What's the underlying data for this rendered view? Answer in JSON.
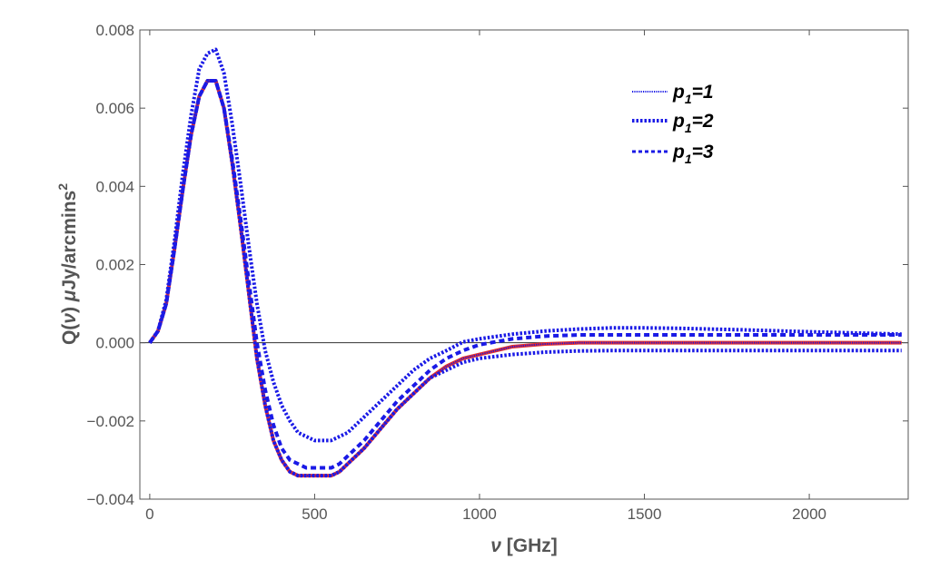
{
  "chart_data": {
    "type": "line",
    "title": "",
    "xlabel": {
      "symbol": "ν",
      "unit": " [GHz]"
    },
    "ylabel": {
      "prefix": "Q(",
      "var": "ν",
      "mid": ") ",
      "mu": "μ",
      "unit": "Jy/arcmins",
      "sup": "2"
    },
    "xlim": [
      -30,
      2300
    ],
    "ylim": [
      -0.004,
      0.008
    ],
    "xticks": [
      0,
      500,
      1000,
      1500,
      2000
    ],
    "xtick_labels": [
      "0",
      "500",
      "1000",
      "1500",
      "2000"
    ],
    "yticks": [
      -0.004,
      -0.002,
      0.0,
      0.002,
      0.004,
      0.006,
      0.008
    ],
    "ytick_labels": [
      "−0.004",
      "−0.002",
      "0.000",
      "0.002",
      "0.004",
      "0.006",
      "0.008"
    ],
    "grid": false,
    "legend_position": "top-right",
    "legend": [
      {
        "p": "p",
        "sub": "1",
        "eq": "=1"
      },
      {
        "p": "p",
        "sub": "1",
        "eq": "=2"
      },
      {
        "p": "p",
        "sub": "1",
        "eq": "=3"
      }
    ],
    "colors": {
      "red": "#e8302a",
      "blue": "#1a1ae6",
      "axis": "#555555",
      "zero_line": "#333333"
    },
    "x": [
      0,
      25,
      50,
      75,
      100,
      125,
      150,
      175,
      200,
      225,
      250,
      275,
      300,
      325,
      350,
      375,
      400,
      425,
      450,
      475,
      500,
      525,
      550,
      575,
      600,
      650,
      700,
      750,
      800,
      850,
      900,
      950,
      1000,
      1100,
      1200,
      1300,
      1400,
      1500,
      1600,
      1800,
      2000,
      2280
    ],
    "series": [
      {
        "style": "red-solid",
        "values": [
          0,
          0.0003,
          0.001,
          0.0024,
          0.0039,
          0.0053,
          0.0063,
          0.0067,
          0.0067,
          0.006,
          0.0046,
          0.003,
          0.0013,
          -0.0004,
          -0.0016,
          -0.0025,
          -0.003,
          -0.0033,
          -0.0034,
          -0.0034,
          -0.0034,
          -0.0034,
          -0.0034,
          -0.0033,
          -0.0031,
          -0.0027,
          -0.0022,
          -0.0017,
          -0.0013,
          -0.0009,
          -0.0006,
          -0.0004,
          -0.0003,
          -0.0001,
          -3e-05,
          0,
          0,
          0,
          0,
          0,
          0,
          0
        ]
      },
      {
        "style": "blue-dotted-fine",
        "values": [
          0,
          0.0003,
          0.001,
          0.0024,
          0.0039,
          0.0053,
          0.0063,
          0.0067,
          0.0067,
          0.006,
          0.0046,
          0.003,
          0.0013,
          -0.0004,
          -0.0016,
          -0.0025,
          -0.003,
          -0.0033,
          -0.0034,
          -0.0034,
          -0.0034,
          -0.0034,
          -0.0034,
          -0.0033,
          -0.0031,
          -0.0027,
          -0.0022,
          -0.0017,
          -0.0013,
          -0.0009,
          -0.0006,
          -0.0004,
          -0.0003,
          -0.0001,
          -3e-05,
          0,
          0,
          0,
          0,
          0,
          0,
          0
        ]
      },
      {
        "style": "blue-dotted-heavy",
        "values": [
          0,
          0.0003,
          0.0011,
          0.0026,
          0.0043,
          0.0058,
          0.007,
          0.0074,
          0.0075,
          0.0069,
          0.0056,
          0.0041,
          0.0025,
          0.001,
          -0.0002,
          -0.001,
          -0.0016,
          -0.002,
          -0.0023,
          -0.0024,
          -0.0025,
          -0.0025,
          -0.0025,
          -0.0024,
          -0.0023,
          -0.0019,
          -0.0015,
          -0.0011,
          -0.0007,
          -0.0004,
          -0.0002,
          2e-05,
          0.0001,
          0.00022,
          0.0003,
          0.00035,
          0.00038,
          0.00038,
          0.00037,
          0.00033,
          0.00028,
          0.00022
        ]
      },
      {
        "style": "blue-dotted-heavy",
        "values": [
          0,
          0.0003,
          0.001,
          0.0024,
          0.0039,
          0.0053,
          0.0063,
          0.0067,
          0.0067,
          0.006,
          0.0046,
          0.003,
          0.0013,
          -0.0004,
          -0.0016,
          -0.0025,
          -0.003,
          -0.0033,
          -0.0034,
          -0.0034,
          -0.0034,
          -0.0034,
          -0.0034,
          -0.0033,
          -0.0031,
          -0.0027,
          -0.0022,
          -0.0017,
          -0.0013,
          -0.0009,
          -0.0007,
          -0.0005,
          -0.0004,
          -0.0003,
          -0.00024,
          -0.00021,
          -0.0002,
          -0.0002,
          -0.0002,
          -0.0002,
          -0.0002,
          -0.0002
        ]
      },
      {
        "style": "blue-dashed",
        "values": [
          0,
          0.0003,
          0.001,
          0.0024,
          0.0039,
          0.0053,
          0.0063,
          0.0067,
          0.0067,
          0.006,
          0.0047,
          0.0032,
          0.0016,
          0.0,
          -0.0012,
          -0.0021,
          -0.0027,
          -0.003,
          -0.0031,
          -0.0032,
          -0.0032,
          -0.0032,
          -0.0032,
          -0.0031,
          -0.0029,
          -0.0025,
          -0.002,
          -0.0015,
          -0.0011,
          -0.0007,
          -0.0004,
          -0.0002,
          -5e-05,
          0.0001,
          0.00017,
          0.0002,
          0.0002,
          0.0002,
          0.0002,
          0.0002,
          0.0002,
          0.0002
        ]
      }
    ]
  }
}
